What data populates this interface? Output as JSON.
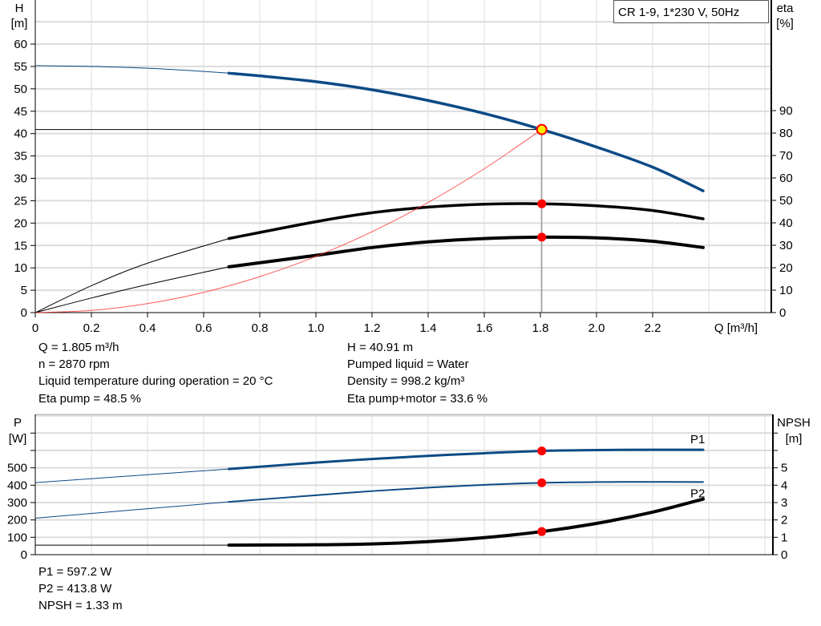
{
  "chart_data": [
    {
      "type": "line",
      "legend_box": "CR 1-9, 1*230 V, 50Hz",
      "xlabel": "Q [m³/h]",
      "ylabel": [
        "H",
        "[m]"
      ],
      "y2label": [
        "eta",
        "[%]"
      ],
      "xlim": [
        0,
        2.6
      ],
      "ylim": [
        0,
        65
      ],
      "y2lim": [
        0,
        90
      ],
      "xticks": [
        "0",
        "0.2",
        "0.4",
        "0.6",
        "0.8",
        "1.0",
        "1.2",
        "1.4",
        "1.6",
        "1.8",
        "2.0",
        "2.2"
      ],
      "yticks": [
        "0",
        "5",
        "10",
        "15",
        "20",
        "25",
        "30",
        "35",
        "40",
        "45",
        "50",
        "55",
        "60"
      ],
      "y2ticks": [
        "0",
        "10",
        "20",
        "30",
        "40",
        "50",
        "60",
        "70",
        "80",
        "90"
      ],
      "grid": true,
      "operating_point": {
        "Q": 1.805,
        "H": 40.91,
        "eta_pump": 48.5,
        "eta_total": 33.6
      },
      "series": [
        {
          "key": "H",
          "axis": "left",
          "color": "#0d4a85",
          "thick_from": 0.69,
          "x": [
            0,
            0.2,
            0.4,
            0.6,
            0.69,
            0.8,
            1.0,
            1.2,
            1.4,
            1.6,
            1.805,
            2.0,
            2.2,
            2.38
          ],
          "y": [
            55.2,
            55.0,
            54.6,
            53.9,
            53.5,
            52.9,
            51.6,
            49.8,
            47.4,
            44.5,
            40.91,
            37.0,
            32.5,
            27.2
          ]
        },
        {
          "key": "eta_pump",
          "axis": "right",
          "color": "#000000",
          "thick_from": 0.69,
          "x": [
            0,
            0.2,
            0.4,
            0.69,
            1.0,
            1.2,
            1.4,
            1.6,
            1.805,
            2.0,
            2.2,
            2.38
          ],
          "y": [
            0,
            12,
            22,
            33,
            40.5,
            44.5,
            47,
            48.3,
            48.5,
            47.6,
            45.5,
            41.8
          ]
        },
        {
          "key": "eta_total",
          "axis": "right",
          "color": "#000000",
          "thick_from": 0.69,
          "x": [
            0,
            0.2,
            0.4,
            0.69,
            1.0,
            1.2,
            1.4,
            1.6,
            1.805,
            2.0,
            2.2,
            2.38
          ],
          "y": [
            0,
            6.5,
            12.5,
            20.4,
            25.5,
            29,
            31.5,
            33,
            33.6,
            33.3,
            31.8,
            29
          ]
        },
        {
          "key": "system_curve",
          "axis": "left",
          "color": "#ff3030",
          "thick_from": null,
          "x": [
            0,
            0.2,
            0.4,
            0.6,
            0.8,
            1.0,
            1.2,
            1.4,
            1.6,
            1.805
          ],
          "y": [
            0,
            0.5,
            2.01,
            4.52,
            8.04,
            12.56,
            18.08,
            24.61,
            32.15,
            40.91
          ]
        }
      ]
    },
    {
      "type": "line",
      "ylabel": [
        "P",
        "[W]"
      ],
      "y2label": [
        "NPSH",
        "[m]"
      ],
      "xlim": [
        0,
        2.6
      ],
      "ylim": [
        0,
        800
      ],
      "y2lim": [
        0,
        8
      ],
      "yticks": [
        "0",
        "100",
        "200",
        "300",
        "400",
        "500"
      ],
      "y2ticks": [
        "0",
        "1",
        "2",
        "3",
        "4",
        "5"
      ],
      "grid": true,
      "series": [
        {
          "key": "P1",
          "name": "P1",
          "axis": "left",
          "color": "#0d4a85",
          "thick_from": 0.69,
          "width": 3,
          "x": [
            0,
            0.69,
            1.0,
            1.2,
            1.4,
            1.6,
            1.805,
            2.0,
            2.2,
            2.38
          ],
          "y": [
            415,
            493,
            530,
            551,
            569,
            584,
            597.2,
            602,
            604,
            604
          ]
        },
        {
          "key": "P2",
          "name": "P2",
          "axis": "left",
          "color": "#0d4a85",
          "thick_from": 0.69,
          "width": 2,
          "x": [
            0,
            0.69,
            1.0,
            1.2,
            1.4,
            1.6,
            1.805,
            2.0,
            2.2,
            2.38
          ],
          "y": [
            210,
            304,
            342,
            366,
            386,
            402,
            413.8,
            418,
            419,
            418
          ]
        },
        {
          "key": "NPSH",
          "axis": "right",
          "color": "#000000",
          "thick_from": 0.69,
          "width": 4,
          "x": [
            0,
            0.69,
            1.0,
            1.2,
            1.4,
            1.6,
            1.805,
            2.0,
            2.2,
            2.38
          ],
          "y": [
            0.55,
            0.55,
            0.57,
            0.62,
            0.75,
            0.98,
            1.33,
            1.8,
            2.45,
            3.2
          ]
        }
      ],
      "points": [
        597.2,
        413.8
      ]
    }
  ],
  "info_top": {
    "q": "Q = 1.805 m³/h",
    "n": "n = 2870 rpm",
    "temp": "Liquid temperature during operation = 20 °C",
    "eta_pump": "Eta pump = 48.5 %",
    "h": "H = 40.91 m",
    "liquid": "Pumped liquid = Water",
    "density": "Density = 998.2 kg/m³",
    "eta_total": "Eta pump+motor = 33.6 %"
  },
  "info_bottom": {
    "p1": "P1 = 597.2 W",
    "p2": "P2 = 413.8 W",
    "npsh": "NPSH = 1.33 m"
  }
}
